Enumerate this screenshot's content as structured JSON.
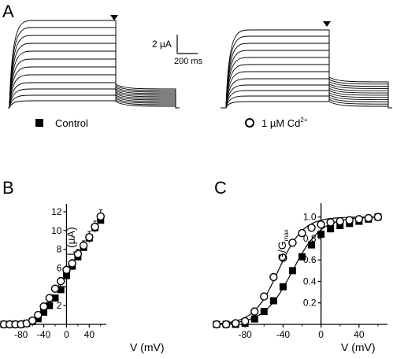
{
  "panels": {
    "a": {
      "label": "A"
    },
    "b": {
      "label": "B"
    },
    "c": {
      "label": "C"
    }
  },
  "scale_bar": {
    "current": "2 µA",
    "time": "200 ms"
  },
  "legend": {
    "control": {
      "text": "Control",
      "marker": "filled-square"
    },
    "cd": {
      "prefix": "1 µM Cd",
      "superscript": "2+",
      "marker": "open-circle"
    }
  },
  "colors": {
    "ink": "#000000",
    "background": "#ffffff"
  },
  "chart_data": [
    {
      "type": "line",
      "panel": "A",
      "traces_per_family": 12,
      "families": [
        "Control",
        "1 µM Cd2+"
      ],
      "marker": "inverted-triangle",
      "scale_current": "2 µA",
      "scale_time": "200 ms"
    },
    {
      "type": "scatter",
      "panel": "B",
      "xlabel": "V (mV)",
      "ylabel": "I",
      "ylabel_sub": "t",
      "ylabel_unit": " (µA)",
      "xlim": [
        -110,
        70
      ],
      "ylim": [
        0,
        12.5
      ],
      "x_ticks": [
        "-80",
        "-40",
        "0",
        "40"
      ],
      "y_ticks": [
        "2",
        "4",
        "6",
        "8",
        "10",
        "12"
      ],
      "x_tick_values": [
        -80,
        -40,
        0,
        40
      ],
      "y_tick_values": [
        2,
        4,
        6,
        8,
        10,
        12
      ],
      "x": [
        -110,
        -100,
        -90,
        -80,
        -70,
        -60,
        -50,
        -40,
        -30,
        -20,
        -10,
        0,
        10,
        20,
        30,
        40,
        50,
        60
      ],
      "series": [
        {
          "name": "Control",
          "marker": "filled-square",
          "values": [
            0.0,
            0.0,
            0.0,
            0.0,
            0.1,
            0.3,
            0.6,
            1.3,
            2.0,
            2.8,
            3.7,
            5.2,
            6.2,
            7.2,
            8.2,
            9.2,
            10.3,
            11.1
          ]
        },
        {
          "name": "1 µM Cd2+",
          "marker": "open-circle",
          "values": [
            0.0,
            0.0,
            0.0,
            0.0,
            0.1,
            0.4,
            1.0,
            1.9,
            2.8,
            3.8,
            4.6,
            5.8,
            6.5,
            7.5,
            8.4,
            9.3,
            10.4,
            11.5
          ]
        }
      ],
      "error_bars": [
        0,
        0,
        0,
        0,
        0.1,
        0.1,
        0.2,
        0.3,
        0.3,
        0.3,
        0.4,
        0.4,
        0.4,
        0.5,
        0.5,
        0.6,
        0.6,
        0.7
      ]
    },
    {
      "type": "scatter",
      "panel": "C",
      "xlabel": "V (mV)",
      "ylabel": "G/G",
      "ylabel_sub": "max",
      "xlim": [
        -110,
        70
      ],
      "ylim": [
        0,
        1.1
      ],
      "x_ticks": [
        "-80",
        "-40",
        "0",
        "40"
      ],
      "y_ticks": [
        "0.2",
        "0.4",
        "0.6",
        "0.8",
        "1.0"
      ],
      "x_tick_values": [
        -80,
        -40,
        0,
        40
      ],
      "y_tick_values": [
        0.2,
        0.4,
        0.6,
        0.8,
        1.0
      ],
      "x": [
        -110,
        -100,
        -90,
        -80,
        -70,
        -60,
        -50,
        -40,
        -30,
        -20,
        -10,
        0,
        10,
        20,
        30,
        40,
        50,
        60
      ],
      "series": [
        {
          "name": "Control",
          "marker": "filled-square",
          "values": [
            0.0,
            0.0,
            0.0,
            0.01,
            0.05,
            0.12,
            0.22,
            0.35,
            0.5,
            0.63,
            0.74,
            0.84,
            0.89,
            0.92,
            0.94,
            0.96,
            0.98,
            1.0
          ]
        },
        {
          "name": "1 µM Cd2+",
          "marker": "open-circle",
          "values": [
            0.0,
            0.0,
            0.01,
            0.03,
            0.12,
            0.26,
            0.44,
            0.62,
            0.76,
            0.85,
            0.9,
            0.93,
            0.95,
            0.96,
            0.97,
            0.98,
            0.99,
            1.0
          ]
        }
      ],
      "fits": [
        {
          "series": "Control",
          "v_half": -30,
          "slope": 15
        },
        {
          "series": "1 µM Cd2+",
          "v_half": -45,
          "slope": 13
        }
      ]
    }
  ]
}
